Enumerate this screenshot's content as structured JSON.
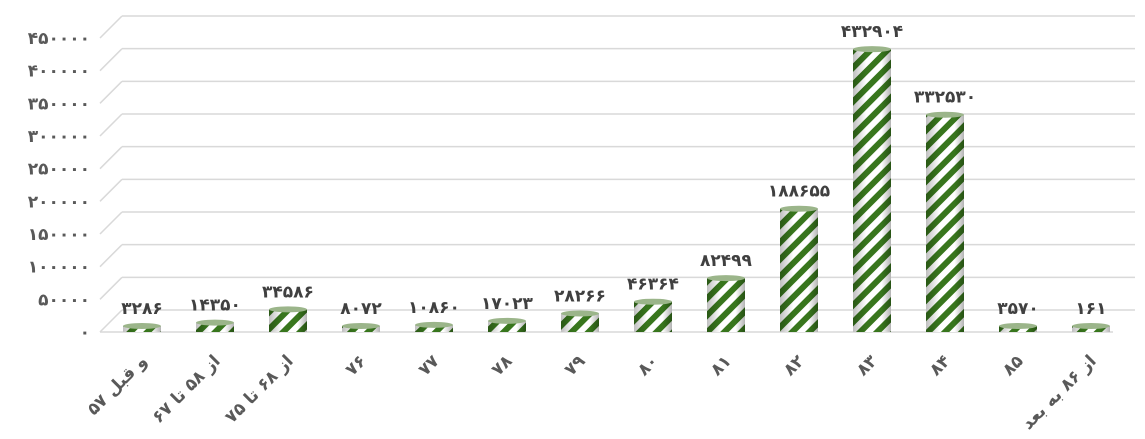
{
  "chart_data": {
    "type": "bar",
    "title": "",
    "xlabel": "",
    "ylabel": "",
    "ylim": [
      0,
      450000
    ],
    "yticks": [
      0,
      50000,
      100000,
      150000,
      200000,
      250000,
      300000,
      350000,
      400000,
      450000
    ],
    "ytick_labels": [
      "۰",
      "۵۰۰۰۰",
      "۱۰۰۰۰۰",
      "۱۵۰۰۰۰",
      "۲۰۰۰۰۰",
      "۲۵۰۰۰۰",
      "۳۰۰۰۰۰",
      "۳۵۰۰۰۰",
      "۴۰۰۰۰۰",
      "۴۵۰۰۰۰"
    ],
    "categories": [
      "۵۷ و قبل",
      "از ۵۸ تا ۶۷",
      "از ۶۸ تا ۷۵",
      "۷۶",
      "۷۷",
      "۷۸",
      "۷۹",
      "۸۰",
      "۸۱",
      "۸۲",
      "۸۳",
      "۸۴",
      "۸۵",
      "از ۸۶ به بعد"
    ],
    "values": [
      3286,
      14350,
      34586,
      8072,
      10860,
      17023,
      28266,
      46364,
      82499,
      188655,
      432904,
      332530,
      3570,
      161
    ],
    "data_labels": [
      "۳۲۸۶",
      "۱۴۳۵۰",
      "۳۴۵۸۶",
      "۸۰۷۲",
      "۱۰۸۶۰",
      "۱۷۰۲۳",
      "۲۸۲۶۶",
      "۴۶۳۶۴",
      "۸۲۴۹۹",
      "۱۸۸۶۵۵",
      "۴۳۲۹۰۴",
      "۳۳۲۵۳۰",
      "۳۵۷۰",
      "۱۶۱"
    ],
    "grid": true,
    "legend": "none",
    "colors": {
      "bar_stripe": "#38761d",
      "bar_light": "#ffffff",
      "bar_top": "#9bb58a",
      "grid": "#d9d9d9",
      "text": "#595959"
    }
  }
}
